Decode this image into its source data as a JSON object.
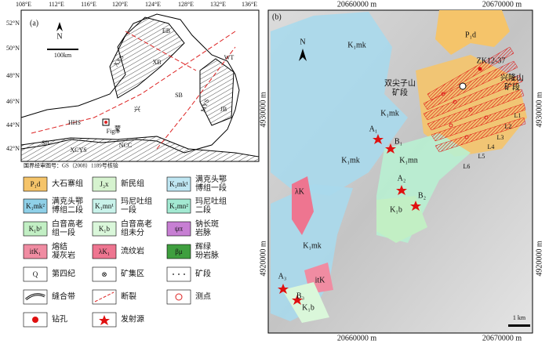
{
  "panel_a": {
    "label": "(a)",
    "north": "N",
    "scale": "100km",
    "lat_labels": [
      "52°N",
      "50°N",
      "48°N",
      "46°N",
      "44°N",
      "42°N"
    ],
    "lon_labels": [
      "108°E",
      "112°E",
      "116°E",
      "120°E",
      "124°E",
      "128°E",
      "132°E",
      "136°E"
    ],
    "regions": [
      "EB",
      "XXS",
      "XB",
      "WT",
      "SB",
      "MYS",
      "JB",
      "HHS",
      "Fig.b",
      "SB",
      "XCYS",
      "NCC",
      "兴",
      "蒙"
    ],
    "note": "国界经审图号：GS（2008）1189号核验"
  },
  "legend": {
    "items": [
      {
        "symbol": "P₁d",
        "color": "#f5c46a",
        "label": [
          "大石寨组"
        ]
      },
      {
        "symbol": "J₃x",
        "color": "#d6f3cf",
        "label": [
          "新民组"
        ]
      },
      {
        "symbol": "K₁mk¹",
        "color": "#bfe6f2",
        "label": [
          "满克头鄂",
          "博组一段"
        ]
      },
      {
        "symbol": "K₁mk²",
        "color": "#8fd0e8",
        "label": [
          "满克头鄂",
          "博组二段"
        ]
      },
      {
        "symbol": "K₁mn¹",
        "color": "#c9f2ea",
        "label": [
          "玛尼吐组",
          "一段"
        ]
      },
      {
        "symbol": "K₁mn²",
        "color": "#a3e9d2",
        "label": [
          "玛尼吐组",
          "二段"
        ]
      },
      {
        "symbol": "K₁b¹",
        "color": "#c2efc4",
        "label": [
          "白音高老",
          "组一段"
        ]
      },
      {
        "symbol": "K₁b",
        "color": "#daf7da",
        "label": [
          "白音高老",
          "组未分"
        ]
      },
      {
        "symbol": "ψπ",
        "color": "#c77fd3",
        "label": [
          "钠长斑",
          "岩脉"
        ]
      },
      {
        "symbol": "itK₁",
        "color": "#f08ca2",
        "label": [
          "熔结",
          "凝灰岩"
        ]
      },
      {
        "symbol": "λK₁",
        "color": "#ee7590",
        "label": [
          "流纹岩"
        ]
      },
      {
        "symbol": "βμ",
        "color": "#3f9f3f",
        "label": [
          "辉绿",
          "玢岩脉"
        ]
      },
      {
        "symbol": "Q",
        "color": "#ffffff",
        "label": [
          "第四纪"
        ]
      },
      {
        "symbol": "⊗",
        "color": "#ffffff",
        "label": [
          "矿集区"
        ]
      },
      {
        "label": [
          "矿段"
        ]
      },
      {
        "label": [
          "缝合带"
        ]
      },
      {
        "label": [
          "断裂"
        ]
      },
      {
        "label": [
          "测点"
        ]
      },
      {
        "label": [
          "钻孔"
        ]
      },
      {
        "label": [
          "发射源"
        ]
      }
    ]
  },
  "panel_b": {
    "label": "(b)",
    "north": "N",
    "x_labels": [
      "20660000 m",
      "20670000 m"
    ],
    "y_labels": [
      "4930000 m",
      "4920000 m"
    ],
    "map_labels": [
      "P₁d",
      "ZK12-37",
      "兴隆山",
      "矿段",
      "K₁mk",
      "双尖子山",
      "矿段",
      "K₁mk",
      "A₁",
      "B₁",
      "K₁mk",
      "K₁mn",
      "A₂",
      "B₂",
      "K₁b",
      "λK",
      "K₁mk",
      "A₃",
      "B₃",
      "itK",
      "K₁b"
    ],
    "lines": [
      "L1",
      "L2",
      "L3",
      "L4",
      "L5",
      "L6"
    ],
    "scale": "1 km"
  }
}
